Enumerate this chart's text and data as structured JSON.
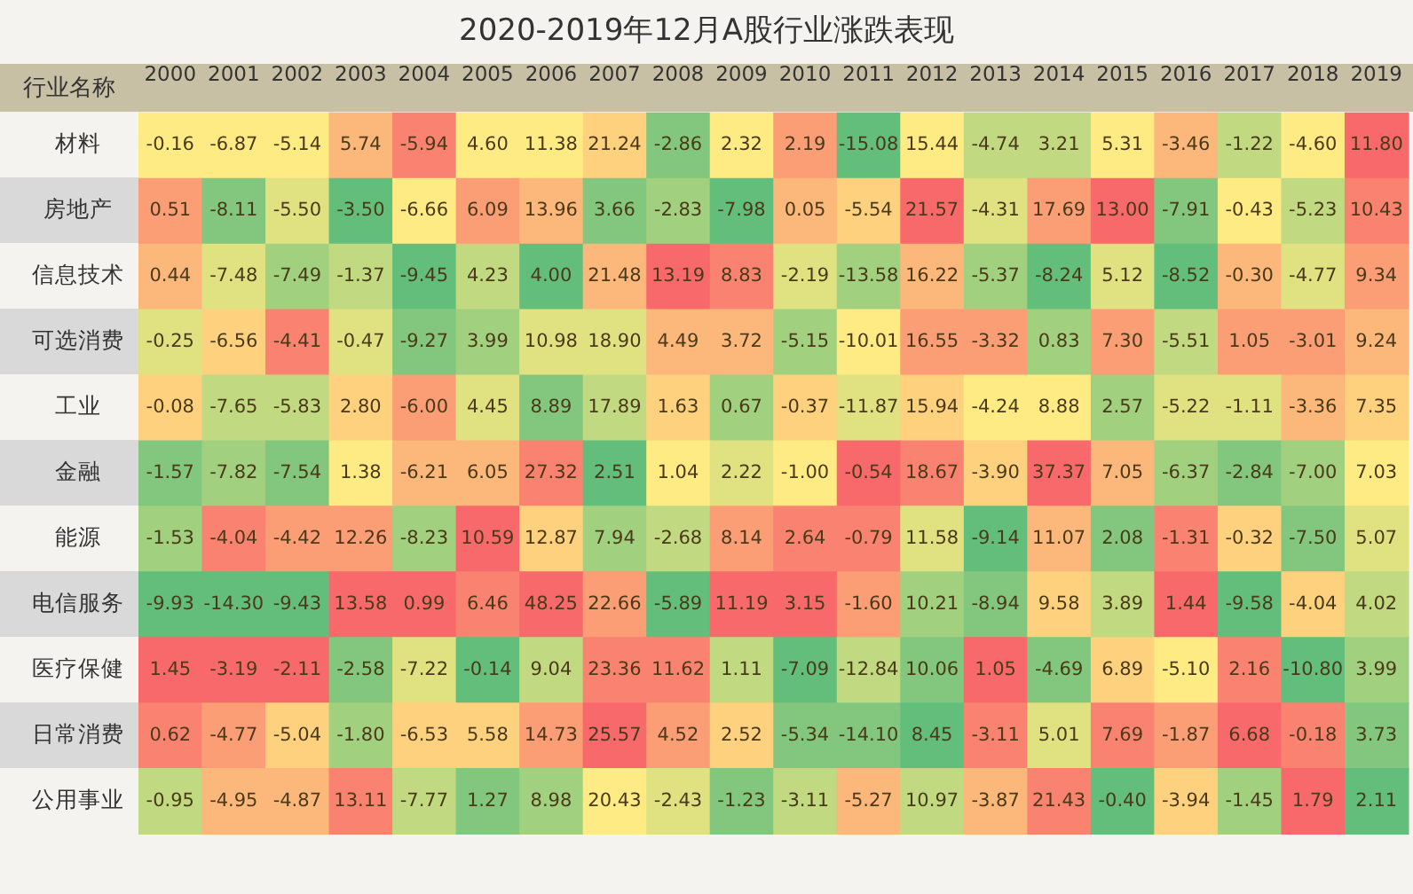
{
  "chart_data": {
    "type": "heatmap",
    "title": "2020-2019年12月A股行业涨跌表现",
    "ylabel": "行业名称",
    "grid": false,
    "categories": [
      "2000",
      "2001",
      "2002",
      "2003",
      "2004",
      "2005",
      "2006",
      "2007",
      "2008",
      "2009",
      "2010",
      "2011",
      "2012",
      "2013",
      "2014",
      "2015",
      "2016",
      "2017",
      "2018",
      "2019"
    ],
    "y_categories": [
      "材料",
      "房地产",
      "信息技术",
      "可选消费",
      "工业",
      "金融",
      "能源",
      "电信服务",
      "医疗保健",
      "日常消费",
      "公用事业"
    ],
    "cells": [
      [
        -0.16,
        -6.87,
        -5.14,
        5.74,
        -5.94,
        4.6,
        11.38,
        21.24,
        -2.86,
        2.32,
        2.19,
        -15.08,
        15.44,
        -4.74,
        3.21,
        5.31,
        -3.46,
        -1.22,
        -4.6,
        11.8
      ],
      [
        0.51,
        -8.11,
        -5.5,
        -3.5,
        -6.66,
        6.09,
        13.96,
        3.66,
        -2.83,
        -7.98,
        0.05,
        -5.54,
        21.57,
        -4.31,
        17.69,
        13.0,
        -7.91,
        -0.43,
        -5.23,
        10.43
      ],
      [
        0.44,
        -7.48,
        -7.49,
        -1.37,
        -9.45,
        4.23,
        4.0,
        21.48,
        13.19,
        8.83,
        -2.19,
        -13.58,
        16.22,
        -5.37,
        -8.24,
        5.12,
        -8.52,
        -0.3,
        -4.77,
        9.34
      ],
      [
        -0.25,
        -6.56,
        -4.41,
        -0.47,
        -9.27,
        3.99,
        10.98,
        18.9,
        4.49,
        3.72,
        -5.15,
        -10.01,
        16.55,
        -3.32,
        0.83,
        7.3,
        -5.51,
        1.05,
        -3.01,
        9.24
      ],
      [
        -0.08,
        -7.65,
        -5.83,
        2.8,
        -6.0,
        4.45,
        8.89,
        17.89,
        1.63,
        0.67,
        -0.37,
        -11.87,
        15.94,
        -4.24,
        8.88,
        2.57,
        -5.22,
        -1.11,
        -3.36,
        7.35
      ],
      [
        -1.57,
        -7.82,
        -7.54,
        1.38,
        -6.21,
        6.05,
        27.32,
        2.51,
        1.04,
        2.22,
        -1.0,
        -0.54,
        18.67,
        -3.9,
        37.37,
        7.05,
        -6.37,
        -2.84,
        -7.0,
        7.03
      ],
      [
        -1.53,
        -4.04,
        -4.42,
        12.26,
        -8.23,
        10.59,
        12.87,
        7.94,
        -2.68,
        8.14,
        2.64,
        -0.79,
        11.58,
        -9.14,
        11.07,
        2.08,
        -1.31,
        -0.32,
        -7.5,
        5.07
      ],
      [
        -9.93,
        -14.3,
        -9.43,
        13.58,
        0.99,
        6.46,
        48.25,
        22.66,
        -5.89,
        11.19,
        3.15,
        -1.6,
        10.21,
        -8.94,
        9.58,
        3.89,
        1.44,
        -9.58,
        -4.04,
        4.02
      ],
      [
        1.45,
        -3.19,
        -2.11,
        -2.58,
        -7.22,
        -0.14,
        9.04,
        23.36,
        11.62,
        1.11,
        -7.09,
        -12.84,
        10.06,
        1.05,
        -4.69,
        6.89,
        -5.1,
        2.16,
        -10.8,
        3.99
      ],
      [
        0.62,
        -4.77,
        -5.04,
        -1.8,
        -6.53,
        5.58,
        14.73,
        25.57,
        4.52,
        2.52,
        -5.34,
        -14.1,
        8.45,
        -3.11,
        5.01,
        7.69,
        -1.87,
        6.68,
        -0.18,
        3.73
      ],
      [
        -0.95,
        -4.95,
        -4.87,
        13.11,
        -7.77,
        1.27,
        8.98,
        20.43,
        -2.43,
        -1.23,
        -3.11,
        -5.27,
        10.97,
        -3.87,
        21.43,
        -0.4,
        -3.94,
        -1.45,
        1.79,
        2.11
      ]
    ],
    "cell_labels": [
      [
        "-0.16",
        "-6.87",
        "-5.14",
        "5.74",
        "-5.94",
        "4.60",
        "11.38",
        "21.24",
        "-2.86",
        "2.32",
        "2.19",
        "-15.08",
        "15.44",
        "-4.74",
        "3.21",
        "5.31",
        "-3.46",
        "-1.22",
        "-4.60",
        "11.80"
      ],
      [
        "0.51",
        "-8.11",
        "-5.50",
        "-3.50",
        "-6.66",
        "6.09",
        "13.96",
        "3.66",
        "-2.83",
        "-7.98",
        "0.05",
        "-5.54",
        "21.57",
        "-4.31",
        "17.69",
        "13.00",
        "-7.91",
        "-0.43",
        "-5.23",
        "10.43"
      ],
      [
        "0.44",
        "-7.48",
        "-7.49",
        "-1.37",
        "-9.45",
        "4.23",
        "4.00",
        "21.48",
        "13.19",
        "8.83",
        "-2.19",
        "-13.58",
        "16.22",
        "-5.37",
        "-8.24",
        "5.12",
        "-8.52",
        "-0.30",
        "-4.77",
        "9.34"
      ],
      [
        "-0.25",
        "-6.56",
        "-4.41",
        "-0.47",
        "-9.27",
        "3.99",
        "10.98",
        "18.90",
        "4.49",
        "3.72",
        "-5.15",
        "-10.01",
        "16.55",
        "-3.32",
        "0.83",
        "7.30",
        "-5.51",
        "1.05",
        "-3.01",
        "9.24"
      ],
      [
        "-0.08",
        "-7.65",
        "-5.83",
        "2.80",
        "-6.00",
        "4.45",
        "8.89",
        "17.89",
        "1.63",
        "0.67",
        "-0.37",
        "-11.87",
        "15.94",
        "-4.24",
        "8.88",
        "2.57",
        "-5.22",
        "-1.11",
        "-3.36",
        "7.35"
      ],
      [
        "-1.57",
        "-7.82",
        "-7.54",
        "1.38",
        "-6.21",
        "6.05",
        "27.32",
        "2.51",
        "1.04",
        "2.22",
        "-1.00",
        "-0.54",
        "18.67",
        "-3.90",
        "37.37",
        "7.05",
        "-6.37",
        "-2.84",
        "-7.00",
        "7.03"
      ],
      [
        "-1.53",
        "-4.04",
        "-4.42",
        "12.26",
        "-8.23",
        "10.59",
        "12.87",
        "7.94",
        "-2.68",
        "8.14",
        "2.64",
        "-0.79",
        "11.58",
        "-9.14",
        "11.07",
        "2.08",
        "-1.31",
        "-0.32",
        "-7.50",
        "5.07"
      ],
      [
        "-9.93",
        "-14.30",
        "-9.43",
        "13.58",
        "0.99",
        "6.46",
        "48.25",
        "22.66",
        "-5.89",
        "11.19",
        "3.15",
        "-1.60",
        "10.21",
        "-8.94",
        "9.58",
        "3.89",
        "1.44",
        "-9.58",
        "-4.04",
        "4.02"
      ],
      [
        "1.45",
        "-3.19",
        "-2.11",
        "-2.58",
        "-7.22",
        "-0.14",
        "9.04",
        "23.36",
        "11.62",
        "1.11",
        "-7.09",
        "-12.84",
        "10.06",
        "1.05",
        "-4.69",
        "6.89",
        "-5.10",
        "2.16",
        "-10.80",
        "3.99"
      ],
      [
        "0.62",
        "-4.77",
        "-5.04",
        "-1.80",
        "-6.53",
        "5.58",
        "14.73",
        "25.57",
        "4.52",
        "2.52",
        "-5.34",
        "-14.10",
        "8.45",
        "-3.11",
        "5.01",
        "7.69",
        "-1.87",
        "6.68",
        "-0.18",
        "3.73"
      ],
      [
        "-0.95",
        "-4.95",
        "-4.87",
        "13.11",
        "-7.77",
        "1.27",
        "8.98",
        "20.43",
        "-2.43",
        "-1.23",
        "-3.11",
        "-5.27",
        "10.97",
        "-3.87",
        "21.43",
        "-0.40",
        "-3.94",
        "-1.45",
        "1.79",
        "2.11"
      ]
    ]
  }
}
